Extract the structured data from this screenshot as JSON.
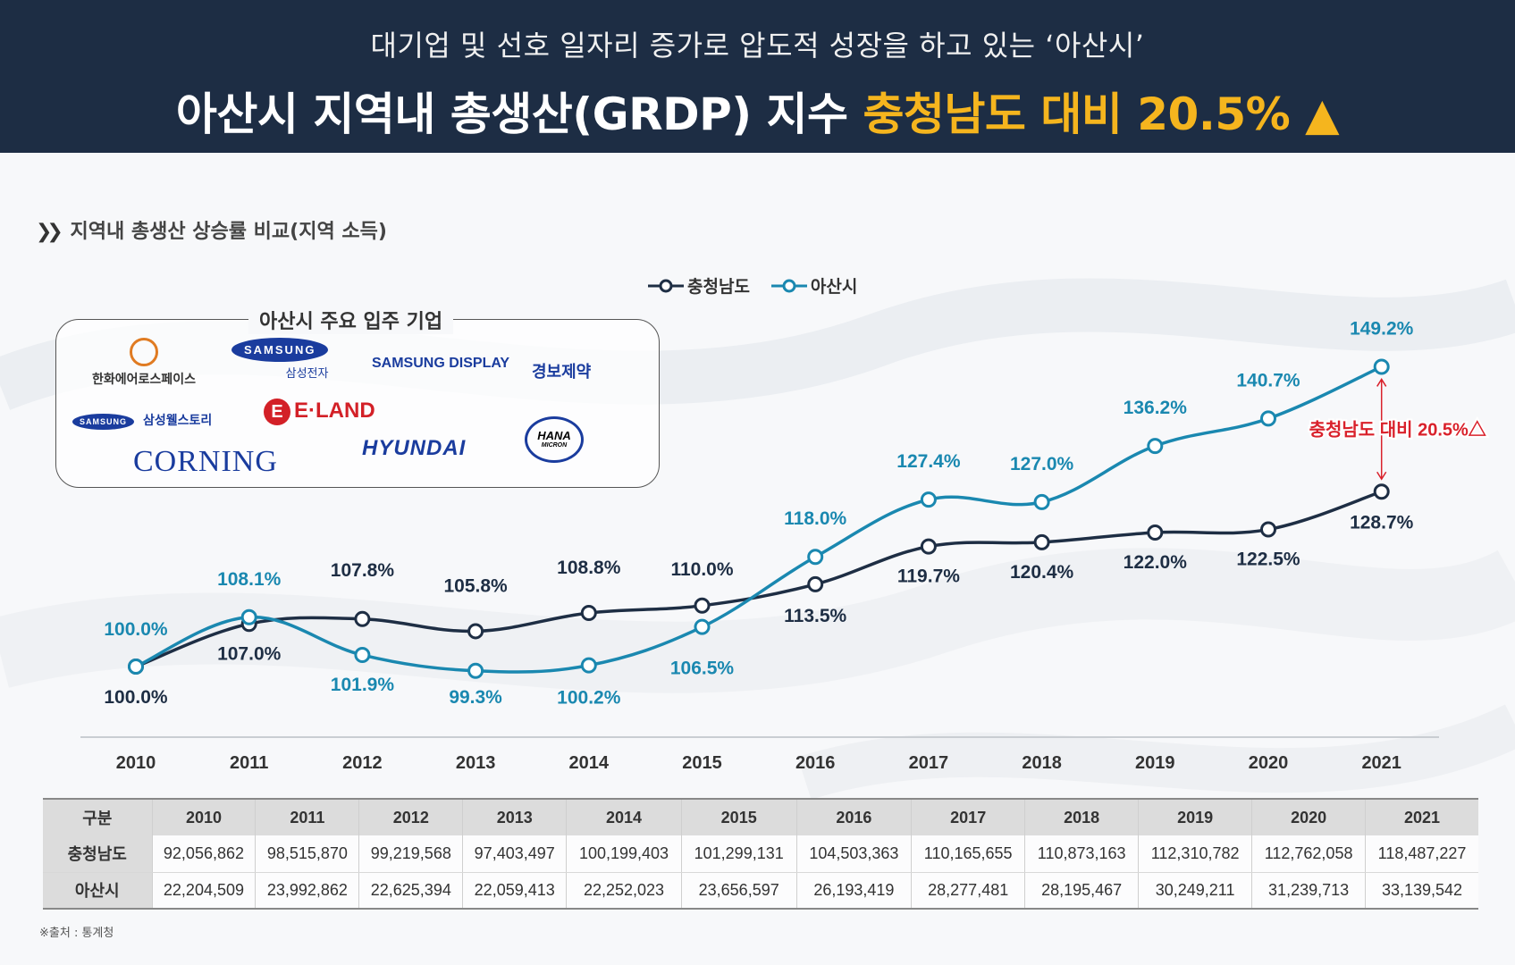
{
  "header": {
    "subtitle": "대기업 및 선호 일자리 증가로 압도적 성장을 하고 있는 ‘아산시’",
    "title_main": "아산시 지역내 총생산(GRDP) 지수 ",
    "title_highlight": "충청남도 대비 20.5% ▲"
  },
  "section_title": "지역내 총생산 상승률 비교(지역 소득)",
  "legend": {
    "series1": "충청남도",
    "series2": "아산시"
  },
  "companies": {
    "title": "아산시 주요 입주 기업",
    "hanwha": "한화에어로스페이스",
    "samsung": "SAMSUNG",
    "samsung_kr": "삼성전자",
    "samsung_display": "SAMSUNG DISPLAY",
    "kb": "경보제약",
    "sdi_mark": "SAMSUNG",
    "sdi": "삼성웰스토리",
    "eland": "E·LAND",
    "eland_mark": "E",
    "hana": "HANA",
    "hana_sub": "MICRON",
    "corning": "CORNING",
    "hyundai": "HYUNDAI"
  },
  "colors": {
    "chungnam": "#1e2e44",
    "asan": "#1a88b0",
    "annotation": "#d9212b",
    "header_bg": "#1d2d44",
    "highlight": "#f5b51e"
  },
  "chart_data": {
    "type": "line",
    "x": [
      "2010",
      "2011",
      "2012",
      "2013",
      "2014",
      "2015",
      "2016",
      "2017",
      "2018",
      "2019",
      "2020",
      "2021"
    ],
    "series": [
      {
        "name": "충청남도",
        "values": [
          100.0,
          107.0,
          107.8,
          105.8,
          108.8,
          110.0,
          113.5,
          119.7,
          120.4,
          122.0,
          122.5,
          128.7
        ],
        "labels": [
          "100.0%",
          "107.0%",
          "107.8%",
          "105.8%",
          "108.8%",
          "110.0%",
          "113.5%",
          "119.7%",
          "120.4%",
          "122.0%",
          "122.5%",
          "128.7%"
        ]
      },
      {
        "name": "아산시",
        "values": [
          100.0,
          108.1,
          101.9,
          99.3,
          100.2,
          106.5,
          118.0,
          127.4,
          127.0,
          136.2,
          140.7,
          149.2
        ],
        "labels": [
          "100.0%",
          "108.1%",
          "101.9%",
          "99.3%",
          "100.2%",
          "106.5%",
          "118.0%",
          "127.4%",
          "127.0%",
          "136.2%",
          "140.7%",
          "149.2%"
        ]
      }
    ],
    "annotation": "충청남도 대비 20.5%△"
  },
  "table": {
    "headers": [
      "구분",
      "2010",
      "2011",
      "2012",
      "2013",
      "2014",
      "2015",
      "2016",
      "2017",
      "2018",
      "2019",
      "2020",
      "2021"
    ],
    "rows": [
      [
        "충청남도",
        "92,056,862",
        "98,515,870",
        "99,219,568",
        "97,403,497",
        "100,199,403",
        "101,299,131",
        "104,503,363",
        "110,165,655",
        "110,873,163",
        "112,310,782",
        "112,762,058",
        "118,487,227"
      ],
      [
        "아산시",
        "22,204,509",
        "23,992,862",
        "22,625,394",
        "22,059,413",
        "22,252,023",
        "23,656,597",
        "26,193,419",
        "28,277,481",
        "28,195,467",
        "30,249,211",
        "31,239,713",
        "33,139,542"
      ]
    ]
  },
  "source": "※출처 : 통계청"
}
